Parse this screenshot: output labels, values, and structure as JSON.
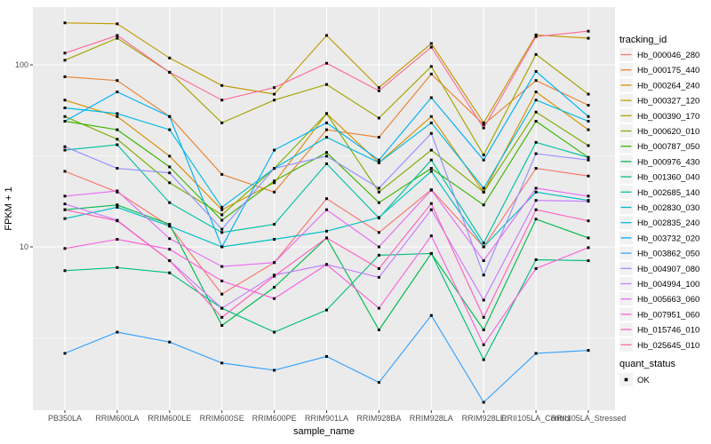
{
  "chart_data": {
    "type": "line",
    "title": "",
    "xlabel": "sample_name",
    "ylabel": "FPKM + 1",
    "y_scale": "log10",
    "y_tick_labels": [
      "100",
      "10"
    ],
    "y_tick_values": [
      100,
      10
    ],
    "y_minor_values": [
      31.62,
      3.162
    ],
    "ylim": [
      1.25,
      205
    ],
    "grid": true,
    "legend_position": "right",
    "legend_title": "tracking_id",
    "legend2_title": "quant_status",
    "legend2_items": [
      "OK"
    ],
    "panel_bg": "#EBEBEB",
    "grid_color": "#FFFFFF",
    "tick_text_color": "#4D4D4D",
    "point_color": "#000000",
    "categories": [
      "PB350LA",
      "RRIM600LA",
      "RRIM600LE",
      "RRIM600SE",
      "RRIM600PE",
      "RRIM901LA",
      "RRIM928BA",
      "RRIM928LA",
      "RRIM928LE",
      "RRII105LA_Control",
      "RRII105LA_Stressed"
    ],
    "series": [
      {
        "name": "Hb_000046_280",
        "color": "#F8766D",
        "values": [
          26,
          20,
          13,
          5.5,
          8.2,
          18.4,
          12,
          20.6,
          10,
          27,
          24.5
        ]
      },
      {
        "name": "Hb_000175_440",
        "color": "#EA8331",
        "values": [
          86,
          82,
          52,
          25,
          20,
          44,
          40,
          89,
          47,
          82,
          60
        ]
      },
      {
        "name": "Hb_000264_240",
        "color": "#D89000",
        "values": [
          64,
          52,
          31.5,
          16,
          22.5,
          54,
          29,
          52,
          20,
          71,
          44
        ]
      },
      {
        "name": "Hb_000327_120",
        "color": "#C09B00",
        "values": [
          170,
          168,
          109,
          77,
          69,
          145,
          75,
          131,
          48,
          146,
          140
        ]
      },
      {
        "name": "Hb_000390_170",
        "color": "#A3A500",
        "values": [
          106,
          140,
          91,
          48,
          64,
          78,
          51,
          98,
          32,
          114,
          69
        ]
      },
      {
        "name": "Hb_000620_010",
        "color": "#7CAE00",
        "values": [
          52,
          39,
          22.5,
          15,
          27,
          54,
          20,
          34,
          20,
          55,
          36
        ]
      },
      {
        "name": "Hb_000787_050",
        "color": "#39B600",
        "values": [
          49,
          44,
          27.5,
          14,
          23,
          33,
          17.5,
          27,
          17,
          49,
          31
        ]
      },
      {
        "name": "Hb_000976_430",
        "color": "#00BB4E",
        "values": [
          16,
          17,
          13.3,
          3.7,
          6,
          11.2,
          3.5,
          9.2,
          3.5,
          14.2,
          11.2
        ]
      },
      {
        "name": "Hb_001360_040",
        "color": "#00BF7D",
        "values": [
          7.4,
          7.7,
          7.2,
          4.6,
          3.4,
          4.5,
          9,
          9.2,
          2.4,
          8.5,
          8.4
        ]
      },
      {
        "name": "Hb_002685_140",
        "color": "#00C1A3",
        "values": [
          34,
          36.4,
          17.5,
          12,
          13.3,
          28.6,
          14.4,
          30,
          10.5,
          37.5,
          31
        ]
      },
      {
        "name": "Hb_002830_030",
        "color": "#00BFC4",
        "values": [
          14.3,
          16.5,
          13,
          10,
          11,
          12.2,
          14.5,
          26,
          10,
          20,
          18
        ]
      },
      {
        "name": "Hb_002835_240",
        "color": "#00BAE0",
        "values": [
          58,
          54,
          44,
          16.5,
          27,
          40,
          29,
          48,
          21,
          64,
          49
        ]
      },
      {
        "name": "Hb_003732_020",
        "color": "#00B0F6",
        "values": [
          49,
          71,
          52,
          10,
          34,
          48,
          30,
          66,
          30,
          92,
          52
        ]
      },
      {
        "name": "Hb_003862_050",
        "color": "#35A2FF",
        "values": [
          2.6,
          3.4,
          3.0,
          2.3,
          2.1,
          2.5,
          1.8,
          4.2,
          1.4,
          2.6,
          2.7
        ]
      },
      {
        "name": "Hb_004907_080",
        "color": "#9590FF",
        "values": [
          35.5,
          27,
          25.5,
          12.5,
          27,
          31.5,
          21,
          42,
          7,
          32.5,
          30
        ]
      },
      {
        "name": "Hb_004994_100",
        "color": "#C77CFF",
        "values": [
          17.2,
          14,
          8.4,
          4.6,
          7,
          8,
          6.8,
          16,
          5.1,
          18,
          17.8
        ]
      },
      {
        "name": "Hb_005663_060",
        "color": "#E76BF3",
        "values": [
          19,
          20.3,
          11.1,
          7.8,
          8.2,
          16,
          10,
          20.5,
          8.4,
          21,
          19
        ]
      },
      {
        "name": "Hb_007951_060",
        "color": "#FA62DB",
        "values": [
          9.8,
          11,
          9.7,
          6.5,
          5.2,
          8,
          4.6,
          11.5,
          2.9,
          7.6,
          9.9
        ]
      },
      {
        "name": "Hb_015746_010",
        "color": "#FF62BC",
        "values": [
          16,
          13.9,
          8.4,
          4.1,
          6.9,
          11.2,
          7.6,
          17.3,
          4.1,
          16,
          13.9
        ]
      },
      {
        "name": "Hb_025645_010",
        "color": "#FF6A98",
        "values": [
          116,
          145,
          91,
          64,
          75,
          102,
          72,
          125,
          45,
          143,
          153
        ]
      }
    ]
  }
}
